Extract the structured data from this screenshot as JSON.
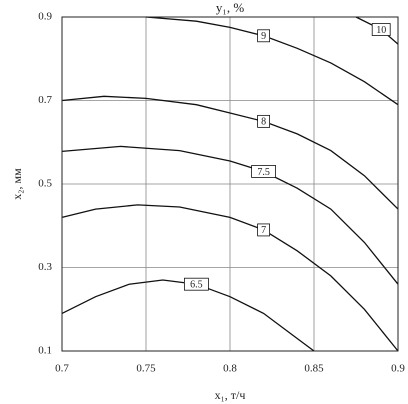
{
  "chart_data": {
    "type": "contour",
    "title": "y₁, %",
    "x_label": "x₁, т/ч",
    "y_label": "x₂, мм",
    "xlim": [
      0.7,
      0.9
    ],
    "ylim": [
      0.1,
      0.9
    ],
    "xticks": [
      0.7,
      0.75,
      0.8,
      0.85,
      0.9
    ],
    "yticks": [
      0.1,
      0.3,
      0.5,
      0.7,
      0.9
    ],
    "grid": true,
    "color": "#111111",
    "series": [
      {
        "name": "6.5",
        "x": [
          0.7,
          0.72,
          0.74,
          0.76,
          0.78,
          0.8,
          0.82,
          0.84,
          0.85
        ],
        "values": [
          0.19,
          0.23,
          0.26,
          0.27,
          0.26,
          0.23,
          0.19,
          0.13,
          0.1
        ]
      },
      {
        "name": "7",
        "x": [
          0.7,
          0.72,
          0.745,
          0.77,
          0.8,
          0.82,
          0.84,
          0.86,
          0.88,
          0.9
        ],
        "values": [
          0.42,
          0.44,
          0.45,
          0.445,
          0.42,
          0.39,
          0.34,
          0.28,
          0.2,
          0.1
        ]
      },
      {
        "name": "7.5",
        "x": [
          0.7,
          0.735,
          0.77,
          0.8,
          0.82,
          0.84,
          0.86,
          0.88,
          0.9
        ],
        "values": [
          0.578,
          0.59,
          0.58,
          0.555,
          0.53,
          0.49,
          0.44,
          0.36,
          0.26
        ]
      },
      {
        "name": "8",
        "x": [
          0.7,
          0.725,
          0.75,
          0.78,
          0.8,
          0.82,
          0.84,
          0.86,
          0.88,
          0.9
        ],
        "values": [
          0.7,
          0.71,
          0.705,
          0.69,
          0.67,
          0.65,
          0.62,
          0.58,
          0.52,
          0.44
        ]
      },
      {
        "name": "9",
        "x": [
          0.75,
          0.78,
          0.8,
          0.82,
          0.84,
          0.86,
          0.88,
          0.9
        ],
        "values": [
          0.9,
          0.89,
          0.875,
          0.855,
          0.825,
          0.79,
          0.745,
          0.69
        ]
      },
      {
        "name": "10",
        "x": [
          0.875,
          0.89,
          0.9
        ],
        "values": [
          0.9,
          0.87,
          0.835
        ]
      }
    ]
  }
}
